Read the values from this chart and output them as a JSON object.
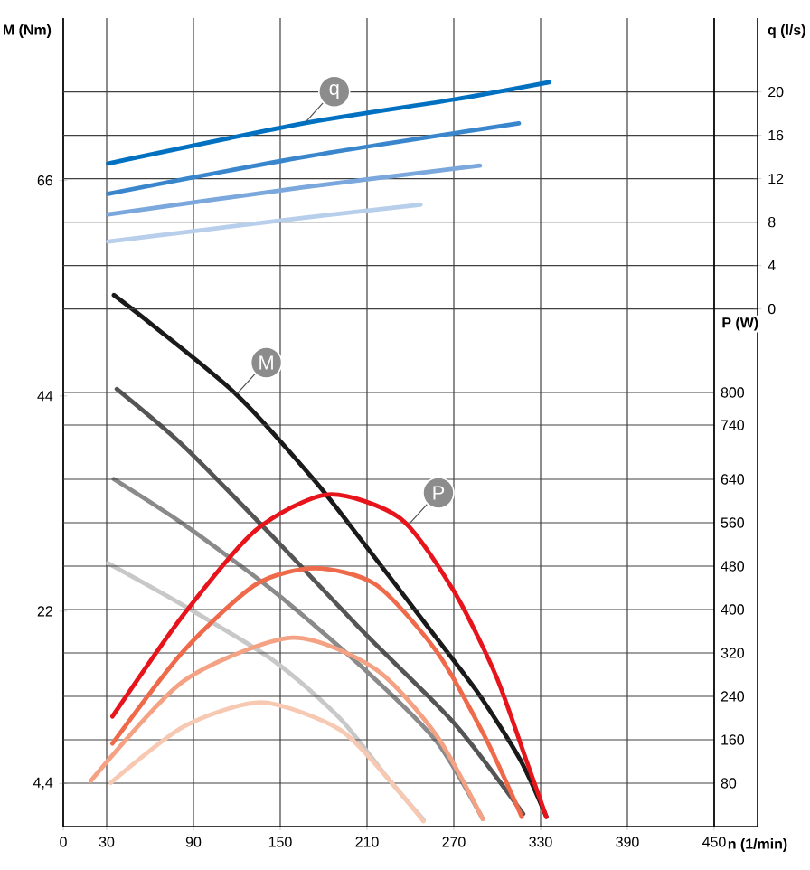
{
  "chart_data": {
    "type": "line",
    "xlabel": "n (1/min)",
    "ylabel": "M (Nm)",
    "y2label": "q (l/s)",
    "y3label": "P (W)",
    "xlim": [
      0,
      480
    ],
    "xticks": [
      0,
      30,
      90,
      150,
      210,
      270,
      330,
      390,
      450
    ],
    "ylim": [
      0,
      82.6
    ],
    "yticks": [
      {
        "value": 4.4,
        "label": "4,4"
      },
      22,
      44,
      66
    ],
    "y2lim": [
      -47.7,
      26.8
    ],
    "y2ticks": [
      0,
      4,
      8,
      12,
      16,
      20
    ],
    "y3lim": [
      0,
      1490
    ],
    "y3ticks": [
      80,
      160,
      240,
      320,
      400,
      480,
      560,
      640,
      740,
      800
    ],
    "grid": true,
    "series": [
      {
        "axis": "y2",
        "color": "#0070c0",
        "x": [
          31,
          166,
          270,
          336
        ],
        "values": [
          13.4,
          17.1,
          19.3,
          20.9
        ]
      },
      {
        "axis": "y2",
        "color": "#3a86cc",
        "x": [
          31,
          166,
          315
        ],
        "values": [
          10.6,
          14.0,
          17.1
        ]
      },
      {
        "axis": "y2",
        "color": "#7aa7dc",
        "x": [
          31,
          166,
          288
        ],
        "values": [
          8.7,
          11.2,
          13.2
        ]
      },
      {
        "axis": "y2",
        "color": "#b8cfec",
        "x": [
          31,
          166,
          247
        ],
        "values": [
          6.2,
          8.4,
          9.6
        ]
      },
      {
        "color": "#1a1a1a",
        "x": [
          35,
          62,
          120,
          174,
          208,
          249,
          287,
          316,
          334
        ],
        "values": [
          54.3,
          51.2,
          44.1,
          35.3,
          28.9,
          21.0,
          13.6,
          6.8,
          1.0
        ]
      },
      {
        "color": "#555555",
        "x": [
          37,
          83,
          145,
          208,
          270,
          318
        ],
        "values": [
          44.7,
          38.9,
          29.6,
          19.8,
          10.6,
          1.3
        ]
      },
      {
        "color": "#8a8a8a",
        "x": [
          35,
          83,
          145,
          208,
          258,
          290
        ],
        "values": [
          35.5,
          30.9,
          24.1,
          16.1,
          8.7,
          0.8
        ]
      },
      {
        "color": "#c8c8c8",
        "x": [
          31,
          83,
          145,
          191,
          224,
          249
        ],
        "values": [
          26.9,
          22.6,
          17.0,
          11.1,
          5.0,
          0.7
        ]
      },
      {
        "axis": "y3",
        "color": "#e8141c",
        "x": [
          34,
          83,
          133,
          183,
          233,
          270,
          299,
          320,
          334
        ],
        "values": [
          203,
          390,
          546,
          612,
          568,
          434,
          279,
          123,
          18
        ]
      },
      {
        "axis": "y3",
        "color": "#ef6a4a",
        "x": [
          34,
          83,
          133,
          174,
          216,
          258,
          291,
          317
        ],
        "values": [
          153,
          323,
          446,
          476,
          446,
          323,
          168,
          18
        ]
      },
      {
        "axis": "y3",
        "color": "#f4a184",
        "x": [
          19,
          83,
          158,
          216,
          258,
          290
        ],
        "values": [
          84,
          268,
          348,
          290,
          168,
          14
        ]
      },
      {
        "axis": "y3",
        "color": "#f8c9b2",
        "x": [
          33,
          83,
          137,
          191,
          224,
          249
        ],
        "values": [
          81,
          184,
          229,
          179,
          90,
          10
        ]
      }
    ],
    "annotations": [
      {
        "text": "q",
        "x": 167,
        "y": 71.9
      },
      {
        "text": "M",
        "x": 120,
        "y": 44.2
      },
      {
        "text": "P",
        "x": 239,
        "y": 30.9
      }
    ]
  }
}
